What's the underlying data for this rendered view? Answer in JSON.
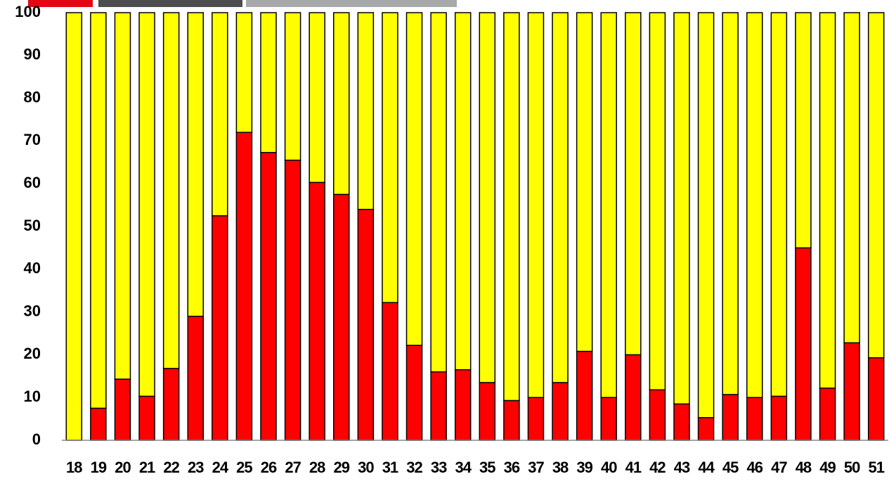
{
  "chart_data": {
    "type": "stacked_bar",
    "categories": [
      "18",
      "19",
      "20",
      "21",
      "22",
      "23",
      "24",
      "25",
      "26",
      "27",
      "28",
      "29",
      "30",
      "31",
      "32",
      "33",
      "34",
      "35",
      "36",
      "37",
      "38",
      "39",
      "40",
      "41",
      "42",
      "43",
      "44",
      "45",
      "46",
      "47",
      "48",
      "49",
      "50",
      "51"
    ],
    "series": [
      {
        "color": "#ff0000",
        "values": [
          0,
          7.5,
          14.3,
          10.3,
          16.8,
          29,
          52.5,
          72,
          67.3,
          65.5,
          60.3,
          57.5,
          54,
          32.2,
          22.2,
          16,
          16.5,
          13.5,
          9.3,
          10,
          13.5,
          20.8,
          10,
          20,
          11.8,
          8.5,
          5.3,
          10.7,
          10,
          10.3,
          45,
          12.2,
          22.8,
          19.3
        ]
      },
      {
        "color": "#ffff00",
        "values": [
          100,
          92.5,
          85.7,
          89.7,
          83.2,
          71,
          47.5,
          28,
          32.7,
          34.5,
          39.7,
          42.5,
          46,
          67.8,
          77.8,
          84,
          83.5,
          86.5,
          90.7,
          90,
          86.5,
          79.2,
          90,
          80,
          88.2,
          91.5,
          94.7,
          89.3,
          90,
          89.7,
          55,
          87.8,
          77.2,
          80.7
        ]
      }
    ],
    "ylim": [
      0,
      100
    ],
    "yticks": [
      0,
      10,
      20,
      30,
      40,
      50,
      60,
      70,
      80,
      90,
      100
    ]
  }
}
